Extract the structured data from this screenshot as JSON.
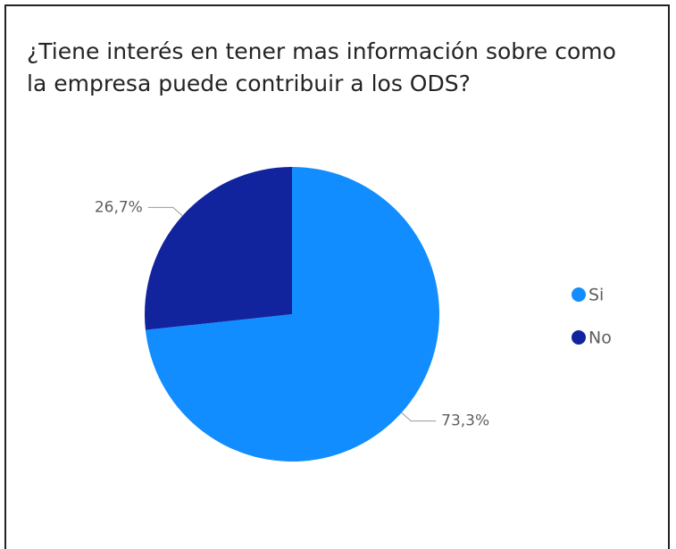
{
  "chart_data": {
    "type": "pie",
    "title": "¿Tiene interés en tener mas información sobre como la empresa puede contribuir a los ODS?",
    "categories": [
      "Si",
      "No"
    ],
    "values": [
      73.3,
      26.7
    ],
    "value_labels": [
      "73,3%",
      "26,7%"
    ],
    "colors": [
      "#118DFF",
      "#12239E"
    ],
    "legend": "right"
  }
}
